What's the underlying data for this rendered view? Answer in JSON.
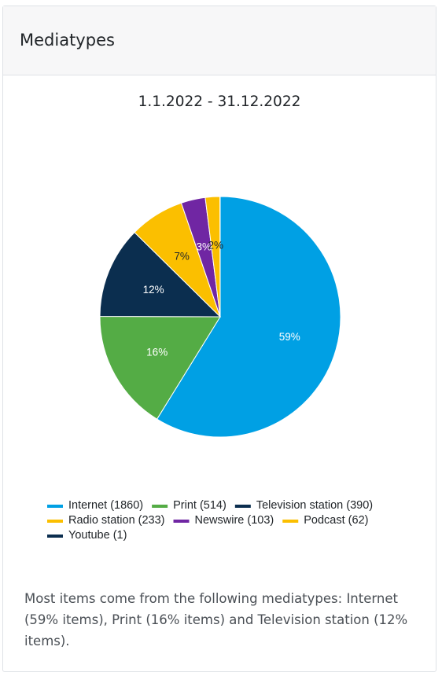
{
  "card": {
    "title": "Mediatypes"
  },
  "chart_data": {
    "type": "pie",
    "subtitle": "1.1.2022 - 31.12.2022",
    "slices": [
      {
        "label": "Internet",
        "value": 1860,
        "percent_label": "59%",
        "legend_label": "Internet (1860)",
        "color": "#00a0e4",
        "label_color": "#ffffff"
      },
      {
        "label": "Print",
        "value": 514,
        "percent_label": "16%",
        "legend_label": "Print (514)",
        "color": "#54ac45",
        "label_color": "#ffffff"
      },
      {
        "label": "Television station",
        "value": 390,
        "percent_label": "12%",
        "legend_label": "Television station (390)",
        "color": "#0b2e4f",
        "label_color": "#ffffff"
      },
      {
        "label": "Radio station",
        "value": 233,
        "percent_label": "7%",
        "legend_label": "Radio station (233)",
        "color": "#fbbf00",
        "label_color": "#212529"
      },
      {
        "label": "Newswire",
        "value": 103,
        "percent_label": "3%",
        "legend_label": "Newswire (103)",
        "color": "#7026a3",
        "label_color": "#ffffff"
      },
      {
        "label": "Podcast",
        "value": 62,
        "percent_label": "2%",
        "legend_label": "Podcast (62)",
        "color": "#fbbf00",
        "label_color": "#212529"
      },
      {
        "label": "Youtube",
        "value": 1,
        "percent_label": "",
        "legend_label": "Youtube (1)",
        "color": "#0b2e4f",
        "label_color": "#ffffff"
      }
    ],
    "legend_position": "bottom"
  },
  "summary": {
    "text": "Most items come from the following mediatypes: Internet (59% items), Print (16% items) and Television station (12% items)."
  }
}
